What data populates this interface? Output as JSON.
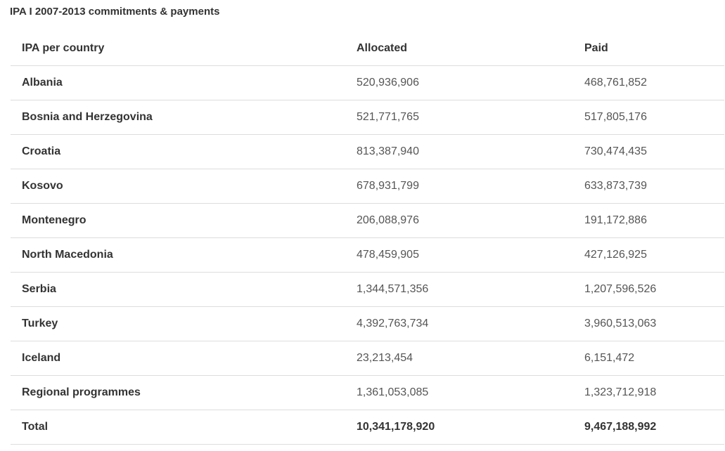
{
  "caption": "IPA I 2007-2013 commitments & payments",
  "table": {
    "headers": {
      "country": "IPA per country",
      "allocated": "Allocated",
      "paid": "Paid"
    },
    "rows": [
      {
        "country": "Albania",
        "allocated": "520,936,906",
        "paid": "468,761,852"
      },
      {
        "country": "Bosnia and Herzegovina",
        "allocated": "521,771,765",
        "paid": "517,805,176"
      },
      {
        "country": "Croatia",
        "allocated": "813,387,940",
        "paid": "730,474,435"
      },
      {
        "country": "Kosovo",
        "allocated": "678,931,799",
        "paid": "633,873,739"
      },
      {
        "country": "Montenegro",
        "allocated": "206,088,976",
        "paid": "191,172,886"
      },
      {
        "country": "North Macedonia",
        "allocated": "478,459,905",
        "paid": "427,126,925"
      },
      {
        "country": "Serbia",
        "allocated": "1,344,571,356",
        "paid": "1,207,596,526"
      },
      {
        "country": "Turkey",
        "allocated": "4,392,763,734",
        "paid": "3,960,513,063"
      },
      {
        "country": "Iceland",
        "allocated": "23,213,454",
        "paid": "6,151,472"
      },
      {
        "country": "Regional programmes",
        "allocated": "1,361,053,085",
        "paid": "1,323,712,918"
      }
    ],
    "total": {
      "country": "Total",
      "allocated": "10,341,178,920",
      "paid": "9,467,188,992"
    }
  }
}
